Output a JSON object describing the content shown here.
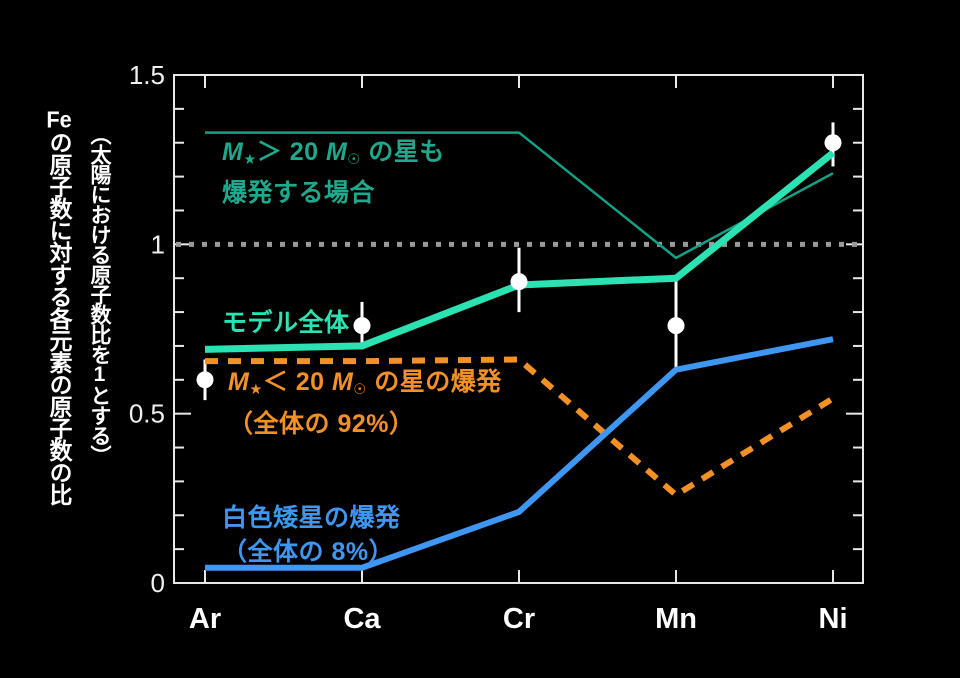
{
  "figure": {
    "background": "#000000",
    "axis_color": "#e8e8e8",
    "text_color": "#ffffff"
  },
  "axis": {
    "ylabel_main": "Feの原子数に対する各元素の原子数の比",
    "ylabel_paren": "（太陽における原子数比を1とする）"
  },
  "annotations": {
    "massive": {
      "line1": "M★＞ 20 M☉ の星も",
      "line2": "爆発する場合",
      "color": "#1fa88c"
    },
    "model": {
      "line1": "モデル全体",
      "color": "#2be3b2"
    },
    "lowmass": {
      "line1": "M★＜ 20 M☉ の星の爆発",
      "line2": "（全体の 92%）",
      "color": "#f39126"
    },
    "whitedwarf": {
      "line1": "白色矮星の爆発",
      "line2": "（全体の 8%）",
      "color": "#3e97f2"
    }
  },
  "chart_data": {
    "type": "line",
    "title": "",
    "xlabel": "",
    "ylabel": "Feの原子数に対する各元素の原子数の比（太陽における原子数比を1とする）",
    "categories": [
      "Ar",
      "Ca",
      "Cr",
      "Mn",
      "Ni"
    ],
    "ylim": [
      0,
      1.5
    ],
    "ytick_values": [
      0,
      0.5,
      1,
      1.5
    ],
    "ytick_labels": [
      "0",
      "0.5",
      "1",
      "1.5"
    ],
    "minor_tick_step": 0.1,
    "grid": false,
    "legend_position": "inline-annotations",
    "reference_line": {
      "value": 1.0,
      "color": "#9a9a9a",
      "style": "dotted"
    },
    "series": [
      {
        "name": "massive-stars-also-explode",
        "label": "M★＞ 20 M☉ の星も爆発する場合",
        "color": "#14a086",
        "width": 2.5,
        "dash": null,
        "values": [
          1.33,
          1.33,
          1.33,
          0.96,
          1.21
        ]
      },
      {
        "name": "low-mass-star-explosions",
        "label": "M★＜ 20 M☉ の星の爆発（全体の 92%）",
        "color": "#f39126",
        "width": 6,
        "dash": "13 10",
        "values": [
          0.655,
          0.655,
          0.66,
          0.26,
          0.545
        ]
      },
      {
        "name": "white-dwarf-explosions",
        "label": "白色矮星の爆発（全体の 8%）",
        "color": "#3e97f2",
        "width": 6,
        "dash": null,
        "values": [
          0.045,
          0.045,
          0.21,
          0.63,
          0.72
        ]
      },
      {
        "name": "model-total",
        "label": "モデル全体",
        "color": "#2be3b2",
        "width": 7,
        "dash": null,
        "values": [
          0.69,
          0.7,
          0.88,
          0.9,
          1.27
        ]
      }
    ],
    "observations": {
      "name": "observed-points",
      "color": "#ffffff",
      "point_radius": 8.5,
      "values": [
        0.6,
        0.76,
        0.89,
        0.76,
        1.3
      ],
      "error_low": [
        0.54,
        0.69,
        0.8,
        0.63,
        1.23
      ],
      "error_high": [
        0.66,
        0.83,
        0.99,
        0.9,
        1.36
      ]
    }
  }
}
